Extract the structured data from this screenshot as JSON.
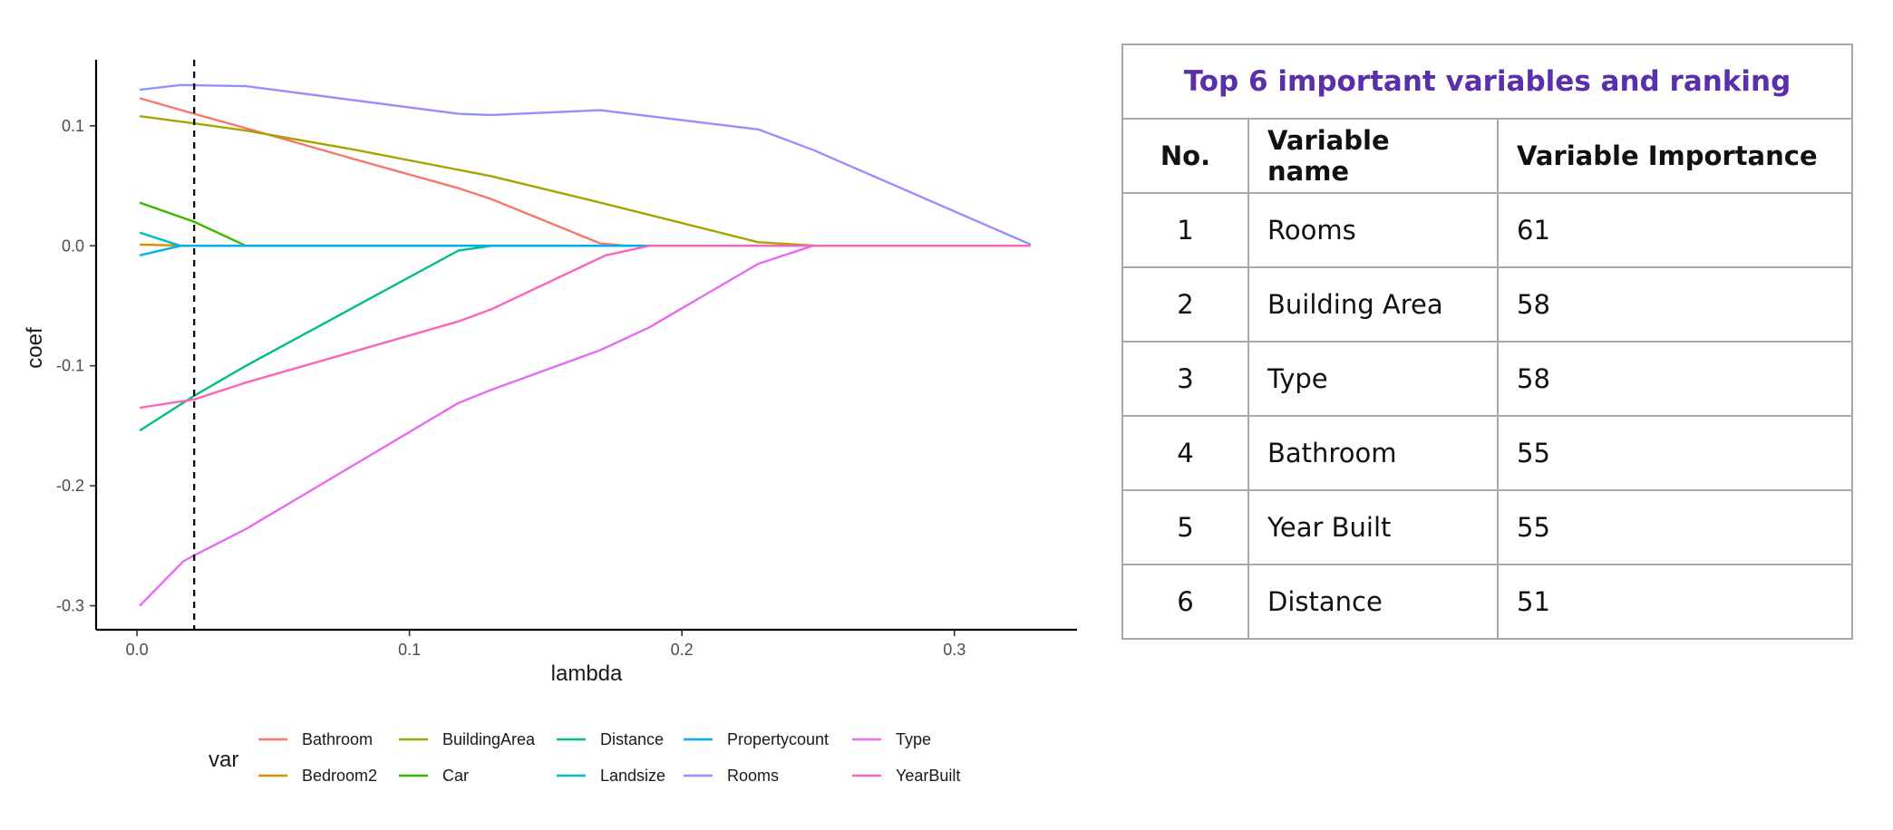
{
  "chart_data": {
    "type": "line",
    "xlabel": "lambda",
    "ylabel": "coef",
    "xlim": [
      -0.015,
      0.345
    ],
    "ylim": [
      -0.32,
      0.155
    ],
    "x_ticks": [
      0.0,
      0.1,
      0.2,
      0.3
    ],
    "x_tick_labels": [
      "0.0",
      "0.1",
      "0.2",
      "0.3"
    ],
    "y_ticks": [
      -0.3,
      -0.2,
      -0.1,
      0.0,
      0.1
    ],
    "y_tick_labels": [
      "-0.3",
      "-0.2",
      "-0.1",
      "0.0",
      "0.1"
    ],
    "reference_line": {
      "type": "vertical",
      "style": "dashed",
      "x": 0.021
    },
    "grid": false,
    "legend": {
      "title": "var",
      "placement": "bottom",
      "columns": 5
    },
    "series": [
      {
        "name": "Bathroom",
        "color": "#F8766D",
        "x": [
          0.001,
          0.021,
          0.04,
          0.08,
          0.118,
          0.13,
          0.17,
          0.18,
          0.25,
          0.328
        ],
        "y": [
          0.123,
          0.11,
          0.098,
          0.072,
          0.048,
          0.039,
          0.002,
          0.0,
          0.0,
          0.0
        ]
      },
      {
        "name": "Bedroom2",
        "color": "#D89000",
        "x": [
          0.001,
          0.021,
          0.328
        ],
        "y": [
          0.001,
          0.0,
          0.0
        ]
      },
      {
        "name": "BuildingArea",
        "color": "#A3A500",
        "x": [
          0.001,
          0.021,
          0.04,
          0.08,
          0.13,
          0.17,
          0.228,
          0.25,
          0.328
        ],
        "y": [
          0.108,
          0.102,
          0.096,
          0.08,
          0.058,
          0.036,
          0.003,
          0.0,
          0.0
        ]
      },
      {
        "name": "Car",
        "color": "#39B600",
        "x": [
          0.001,
          0.021,
          0.04,
          0.328
        ],
        "y": [
          0.036,
          0.02,
          0.0,
          0.0
        ]
      },
      {
        "name": "Distance",
        "color": "#00BF7D",
        "x": [
          0.001,
          0.021,
          0.04,
          0.118,
          0.13,
          0.328
        ],
        "y": [
          -0.154,
          -0.125,
          -0.1,
          -0.004,
          0.0,
          0.0
        ]
      },
      {
        "name": "Landsize",
        "color": "#00BFC4",
        "x": [
          0.001,
          0.016,
          0.328
        ],
        "y": [
          0.011,
          0.0,
          0.0
        ]
      },
      {
        "name": "Propertycount",
        "color": "#00B0F6",
        "x": [
          0.001,
          0.016,
          0.328
        ],
        "y": [
          -0.008,
          0.0,
          0.0
        ]
      },
      {
        "name": "Rooms",
        "color": "#9590FF",
        "x": [
          0.001,
          0.016,
          0.04,
          0.118,
          0.13,
          0.17,
          0.228,
          0.248,
          0.328
        ],
        "y": [
          0.13,
          0.134,
          0.133,
          0.11,
          0.109,
          0.113,
          0.097,
          0.08,
          0.001
        ]
      },
      {
        "name": "Type",
        "color": "#E76BF3",
        "x": [
          0.001,
          0.017,
          0.021,
          0.04,
          0.118,
          0.13,
          0.17,
          0.188,
          0.228,
          0.248,
          0.328
        ],
        "y": [
          -0.3,
          -0.263,
          -0.258,
          -0.236,
          -0.131,
          -0.12,
          -0.087,
          -0.068,
          -0.015,
          0.0,
          0.0
        ]
      },
      {
        "name": "YearBuilt",
        "color": "#FF62BC",
        "x": [
          0.001,
          0.021,
          0.04,
          0.118,
          0.13,
          0.172,
          0.188,
          0.328
        ],
        "y": [
          -0.135,
          -0.128,
          -0.114,
          -0.063,
          -0.053,
          -0.008,
          0.0,
          0.0
        ]
      }
    ]
  },
  "table": {
    "title": "Top 6 important variables and ranking",
    "headers": [
      "No.",
      "Variable name",
      "Variable Importance"
    ],
    "rows": [
      [
        "1",
        "Rooms",
        "61"
      ],
      [
        "2",
        "Building Area",
        "58"
      ],
      [
        "3",
        "Type",
        "58"
      ],
      [
        "4",
        "Bathroom",
        "55"
      ],
      [
        "5",
        "Year Built",
        "55"
      ],
      [
        "6",
        "Distance",
        "51"
      ]
    ]
  }
}
